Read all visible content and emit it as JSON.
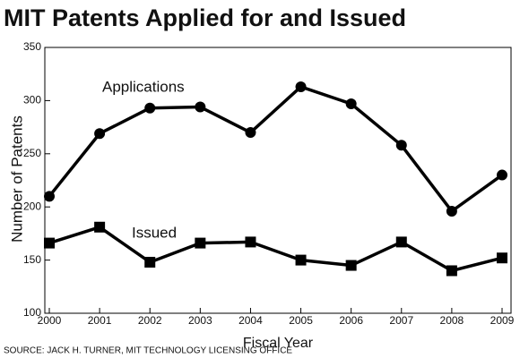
{
  "chart_data": {
    "type": "line",
    "title": "MIT Patents Applied for and Issued",
    "x_label": "Fiscal Year",
    "y_label": "Number of Patents",
    "source": "SOURCE: JACK H. TURNER, MIT TECHNOLOGY LICENSING OFFICE",
    "x": [
      2000,
      2001,
      2002,
      2003,
      2004,
      2005,
      2006,
      2007,
      2008,
      2009
    ],
    "series": [
      {
        "name": "Applications",
        "color": "#000000",
        "marker": "circle",
        "values": [
          210,
          269,
          293,
          294,
          270,
          313,
          297,
          258,
          196,
          230
        ]
      },
      {
        "name": "Issued",
        "color": "#000000",
        "marker": "square",
        "values": [
          166,
          181,
          148,
          166,
          167,
          150,
          145,
          167,
          140,
          152
        ]
      }
    ],
    "xlim": [
      2000,
      2009
    ],
    "xticks": [
      2000,
      2001,
      2002,
      2003,
      2004,
      2005,
      2006,
      2007,
      2008,
      2009
    ],
    "ylim": [
      100,
      350
    ],
    "yticks": [
      100,
      150,
      200,
      250,
      300,
      350
    ]
  }
}
